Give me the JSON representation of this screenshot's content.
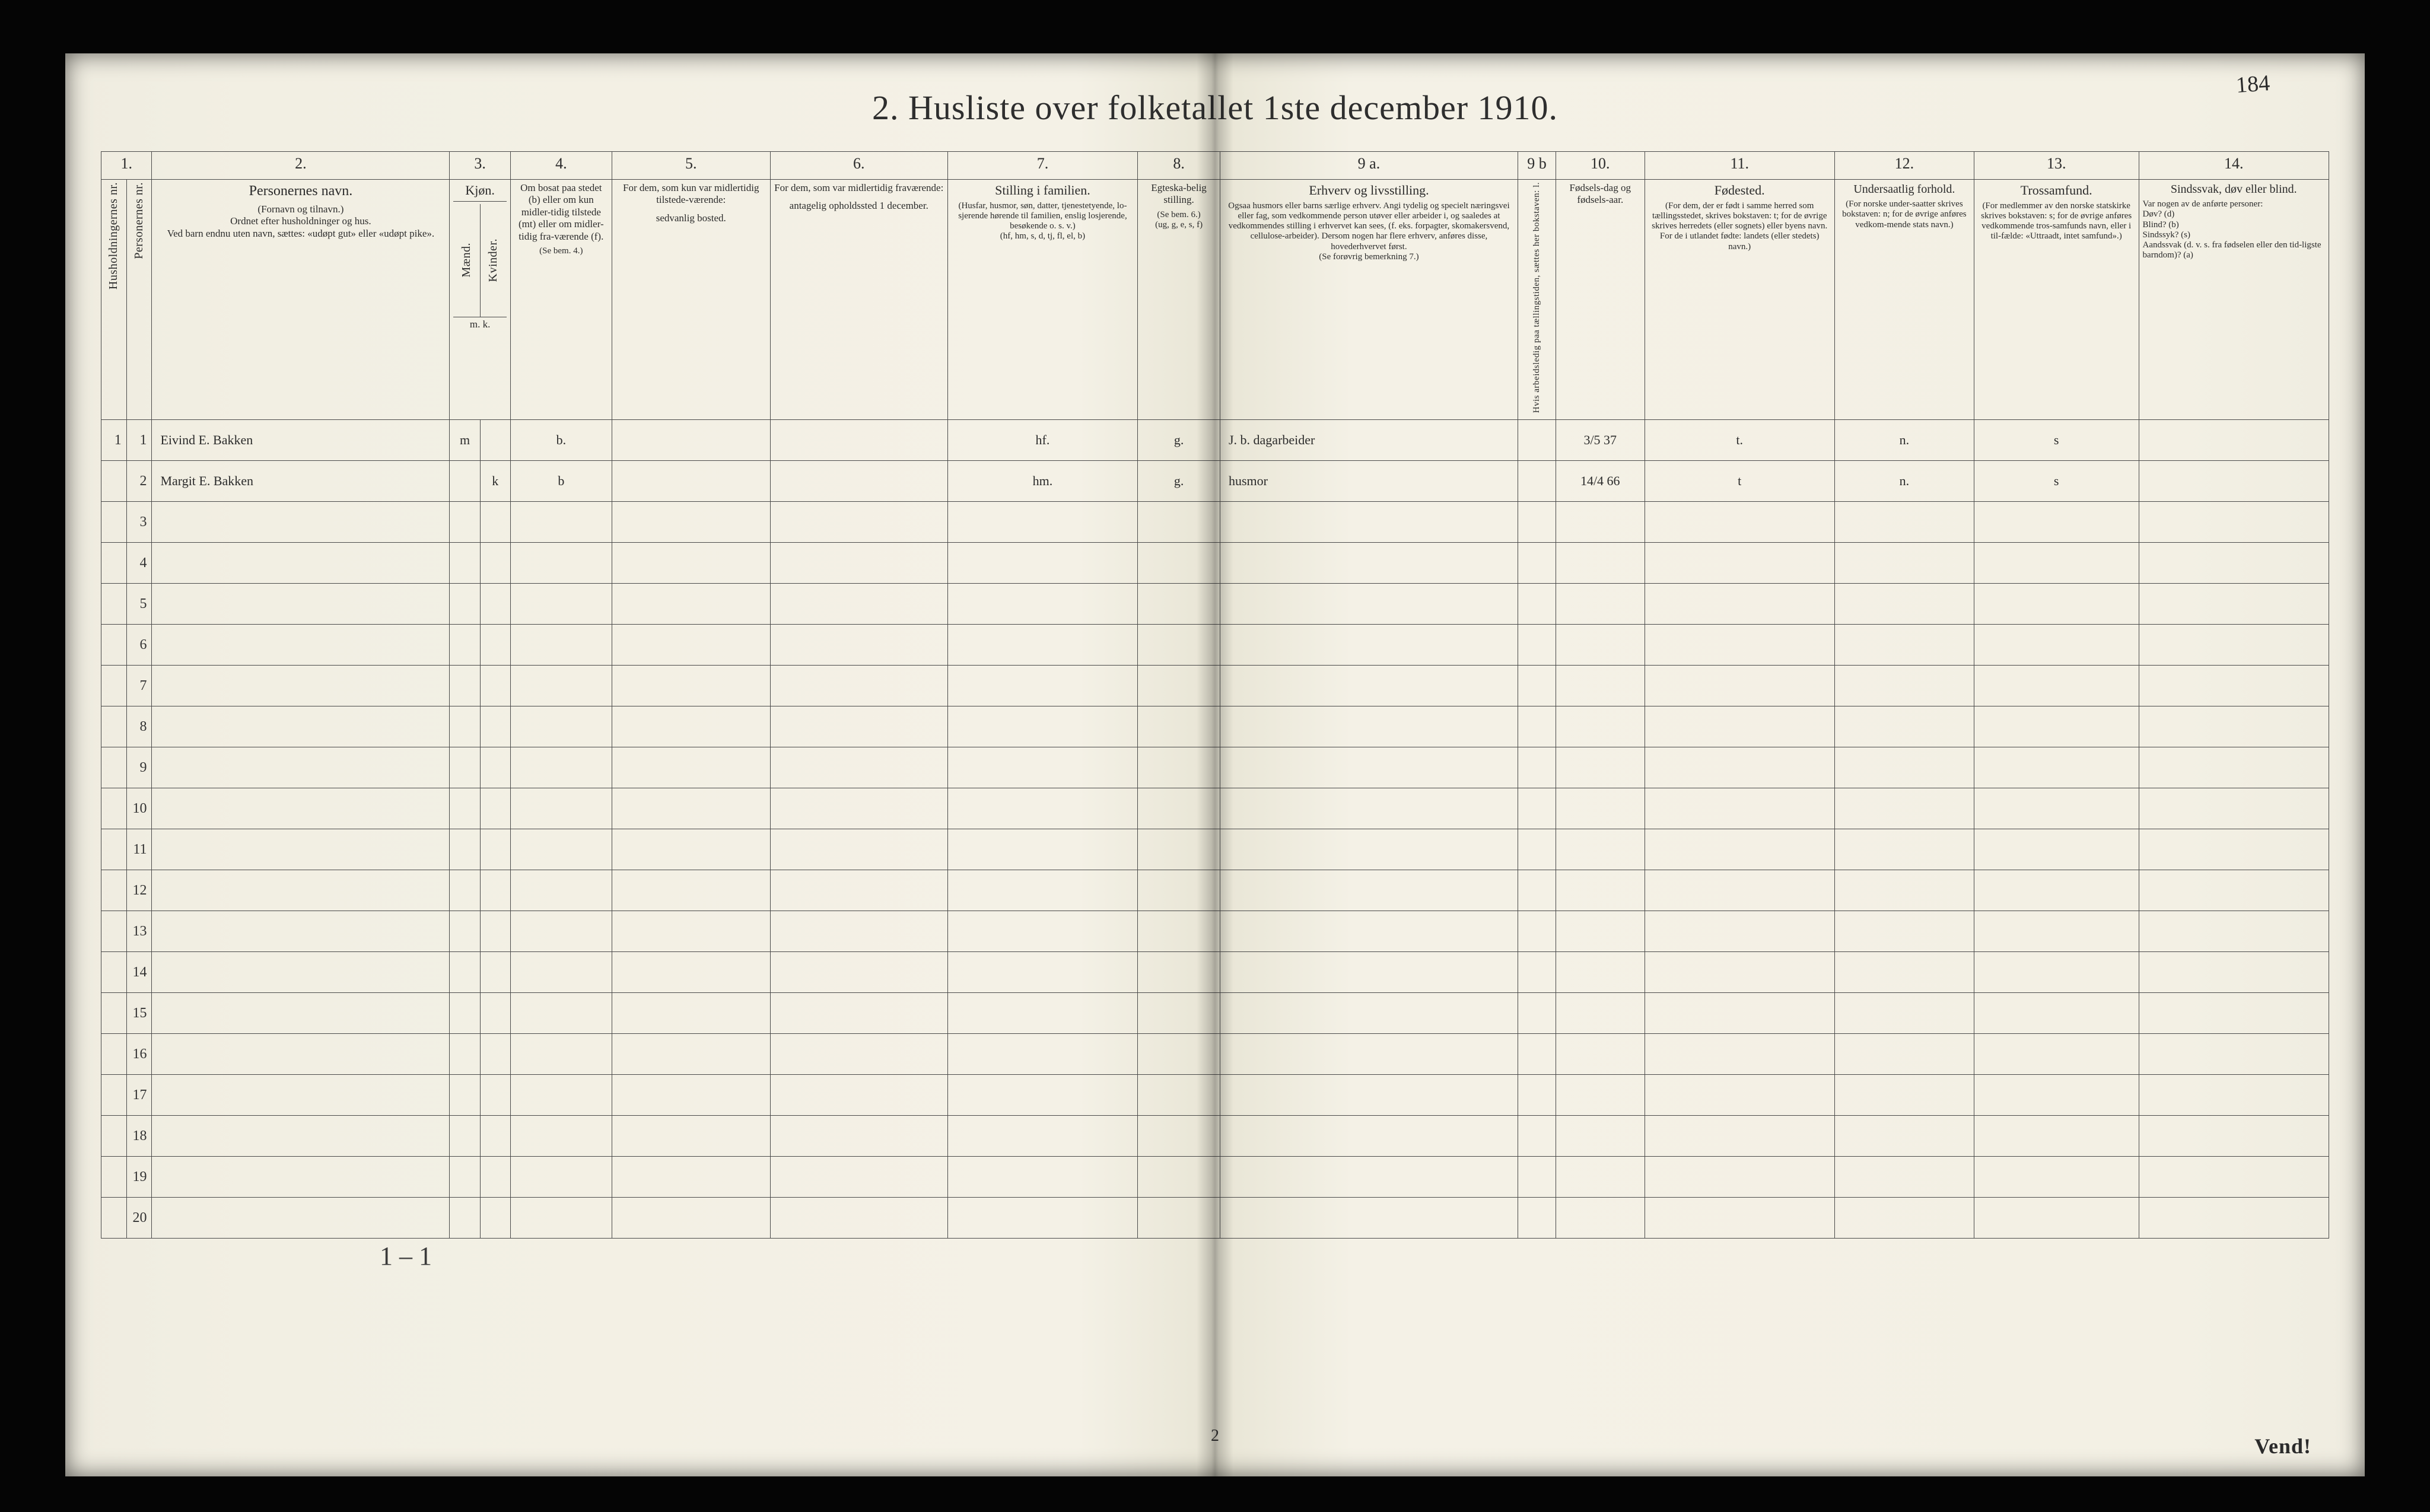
{
  "title": "2.  Husliste over folketallet 1ste december 1910.",
  "page_number_bottom": "2",
  "handwritten_top_right": "184",
  "vend": "Vend!",
  "tally_below_col4": "1 – 1",
  "header": {
    "colnums": [
      "1.",
      "2.",
      "3.",
      "4.",
      "5.",
      "6.",
      "7.",
      "8.",
      "9 a.",
      "9 b",
      "10.",
      "11.",
      "12.",
      "13.",
      "14."
    ],
    "c1a": "Husholdningernes nr.",
    "c1b": "Personernes nr.",
    "c2_title": "Personernes navn.",
    "c2_sub": "(Fornavn og tilnavn.)\nOrdnet efter husholdninger og hus.\nVed barn endnu uten navn, sættes: «udøpt gut» eller «udøpt pike».",
    "c3_title": "Kjøn.",
    "c3_m": "Mænd.",
    "c3_k": "Kvinder.",
    "c3_foot": "m.  k.",
    "c4_title": "Om bosat paa stedet (b) eller om kun midler-tidig tilstede (mt) eller om midler-tidig fra-værende (f).",
    "c4_foot": "(Se bem. 4.)",
    "c5_title": "For dem, som kun var midlertidig tilstede-værende:",
    "c5_sub": "sedvanlig bosted.",
    "c6_title": "For dem, som var midlertidig fraværende:",
    "c6_sub": "antagelig opholdssted 1 december.",
    "c7_title": "Stilling i familien.",
    "c7_sub": "(Husfar, husmor, søn, datter, tjenestetyende, lo-sjerende hørende til familien, enslig losjerende, besøkende o. s. v.)\n(hf, hm, s, d, tj, fl, el, b)",
    "c8_title": "Egteska-belig stilling.",
    "c8_sub": "(Se bem. 6.)\n(ug, g, e, s, f)",
    "c9a_title": "Erhverv og livsstilling.",
    "c9a_sub": "Ogsaa husmors eller barns særlige erhverv. Angi tydelig og specielt næringsvei eller fag, som vedkommende person utøver eller arbeider i, og saaledes at vedkommendes stilling i erhvervet kan sees, (f. eks. forpagter, skomakersvend, cellulose-arbeider). Dersom nogen har flere erhverv, anføres disse, hovederhvervet først.\n(Se forøvrig bemerkning 7.)",
    "c9b": "Hvis arbeidsledig paa tællingstiden, sættes her bokstaven: l.",
    "c10_title": "Fødsels-dag og fødsels-aar.",
    "c11_title": "Fødested.",
    "c11_sub": "(For dem, der er født i samme herred som tællingsstedet, skrives bokstaven: t; for de øvrige skrives herredets (eller sognets) eller byens navn. For de i utlandet fødte: landets (eller stedets) navn.)",
    "c12_title": "Undersaatlig forhold.",
    "c12_sub": "(For norske under-saatter skrives bokstaven: n; for de øvrige anføres vedkom-mende stats navn.)",
    "c13_title": "Trossamfund.",
    "c13_sub": "(For medlemmer av den norske statskirke skrives bokstaven: s; for de øvrige anføres vedkommende tros-samfunds navn, eller i til-fælde: «Uttraadt, intet samfund».)",
    "c14_title": "Sindssvak, døv eller blind.",
    "c14_sub": "Var nogen av de anførte personer:\nDøv?        (d)\nBlind?       (b)\nSindssyk?  (s)\nAandssvak (d. v. s. fra fødselen eller den tid-ligste barndom)?  (a)"
  },
  "rows": [
    {
      "hhnr": "1",
      "pnr": "1",
      "name": "Eivind  E.  Bakken",
      "sex_m": "m",
      "sex_k": "",
      "residence": "b.",
      "mt_place": "",
      "f_place": "",
      "family_pos": "hf.",
      "marital": "g.",
      "occupation": "J. b. dagarbeider",
      "unemp": "",
      "birth": "3/5 37",
      "birthplace": "t.",
      "nationality": "n.",
      "faith": "s",
      "disability": ""
    },
    {
      "hhnr": "",
      "pnr": "2",
      "name": "Margit  E.  Bakken",
      "sex_m": "",
      "sex_k": "k",
      "residence": "b",
      "mt_place": "",
      "f_place": "",
      "family_pos": "hm.",
      "marital": "g.",
      "occupation": "husmor",
      "unemp": "",
      "birth": "14/4 66",
      "birthplace": "t",
      "nationality": "n.",
      "faith": "s",
      "disability": ""
    }
  ],
  "blank_row_count": 18,
  "blank_row_start": 3,
  "colors": {
    "paper": "#f3f0e4",
    "ink": "#2b2b2b",
    "rule": "#4a4a4a",
    "frame": "#050505"
  },
  "typography": {
    "title_fontsize_pt": 32,
    "header_fontsize_pt": 11,
    "body_fontsize_pt": 12,
    "hand_fontsize_pt": 22
  }
}
